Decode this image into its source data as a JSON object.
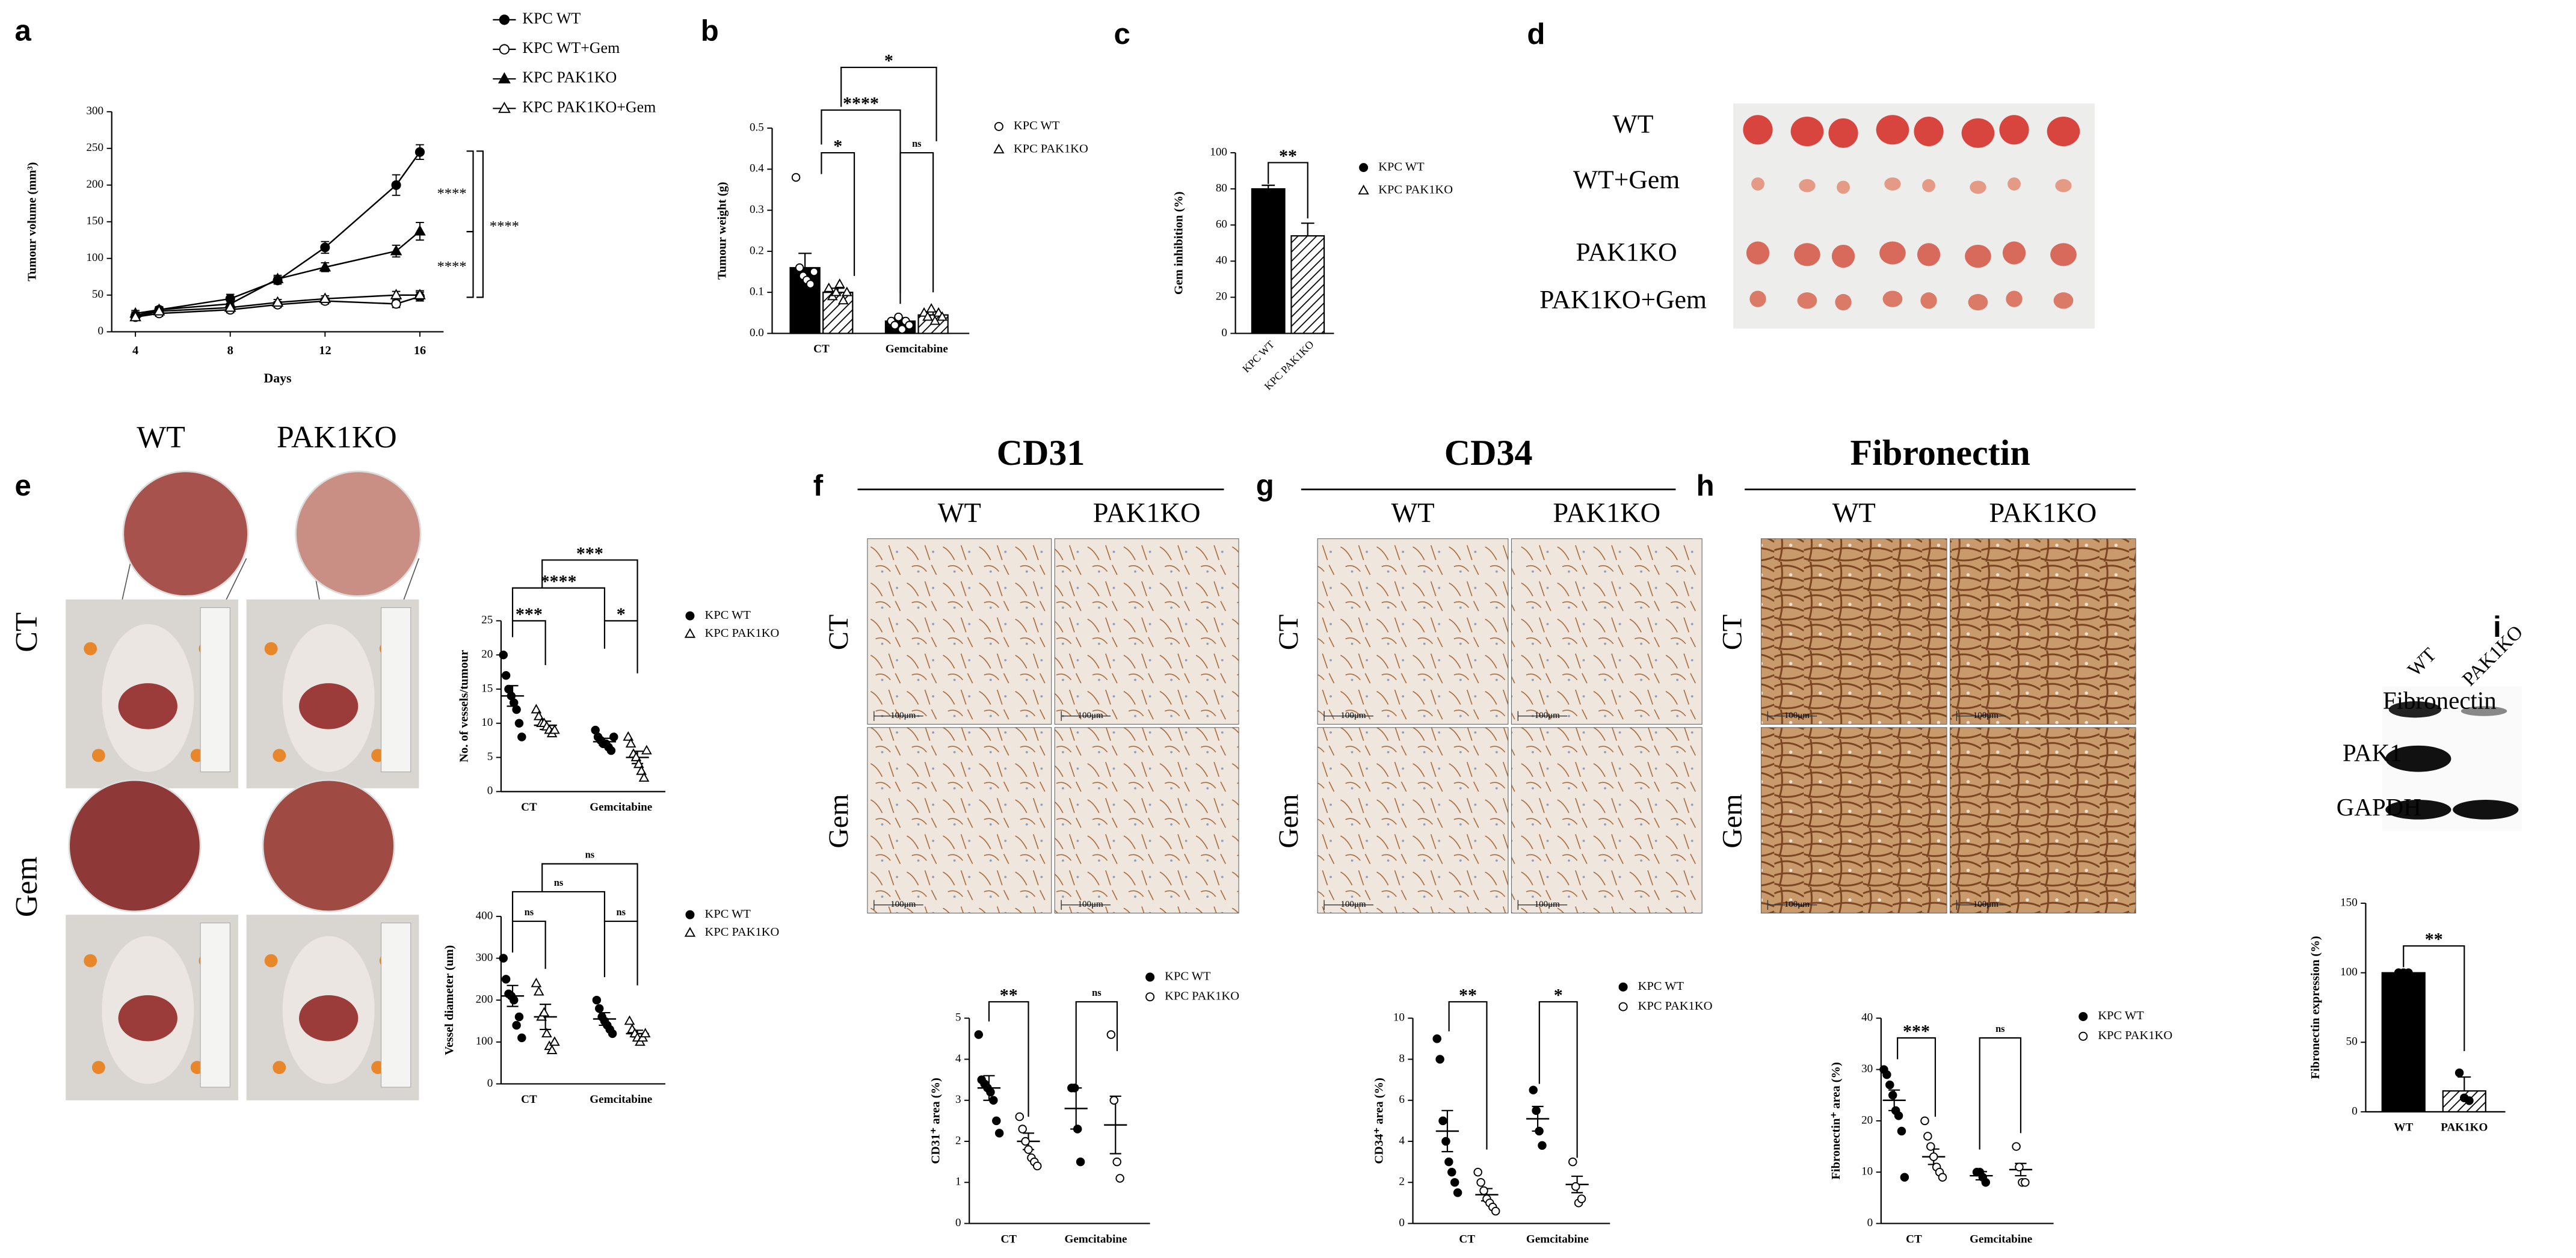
{
  "figure": {
    "panel_d": "d",
    "d_labels": [
      "WT",
      "WT+Gem",
      "PAK1KO",
      "PAK1KO+Gem"
    ],
    "e_columns": [
      "WT",
      "PAK1KO"
    ],
    "e_rows": [
      "CT",
      "Gem"
    ],
    "ihc": [
      {
        "panel": "f",
        "title": "CD31"
      },
      {
        "panel": "g",
        "title": "CD34"
      },
      {
        "panel": "h",
        "title": "Fibronectin"
      }
    ],
    "ihc_columns": [
      "WT",
      "PAK1KO"
    ],
    "ihc_rows": [
      "CT",
      "Gem"
    ],
    "scale_bar": "100μm",
    "blot_lanes": [
      "WT",
      "PAK1KO"
    ],
    "blot_proteins": [
      "Fibronectin",
      "PAK1",
      "GAPDH"
    ]
  },
  "chart_data": [
    {
      "panel": "a",
      "type": "line",
      "x_label": "Days",
      "y_label": "Tumour volume (mm³)",
      "x": [
        4,
        5,
        8,
        10,
        12,
        15,
        16
      ],
      "xlim": [
        3,
        17
      ],
      "xticks": [
        4,
        8,
        12,
        16
      ],
      "ylim": [
        0,
        300
      ],
      "yticks": [
        0,
        50,
        100,
        150,
        200,
        250,
        300
      ],
      "series": [
        {
          "name": "KPC WT",
          "marker": "filled-circle",
          "color": "#000000",
          "values": [
            22,
            30,
            45,
            70,
            115,
            200,
            245
          ],
          "errors": [
            5,
            4,
            6,
            5,
            8,
            14,
            10
          ]
        },
        {
          "name": "KPC WT+Gem",
          "marker": "open-circle",
          "color": "#000000",
          "values": [
            20,
            25,
            30,
            37,
            42,
            38,
            48
          ],
          "errors": [
            4,
            4,
            4,
            4,
            4,
            5,
            6
          ]
        },
        {
          "name": "KPC PAK1KO",
          "marker": "filled-triangle",
          "color": "#000000",
          "values": [
            25,
            30,
            38,
            72,
            88,
            110,
            137
          ],
          "errors": [
            4,
            4,
            5,
            5,
            6,
            8,
            12
          ]
        },
        {
          "name": "KPC PAK1KO+Gem",
          "marker": "open-triangle",
          "color": "#000000",
          "values": [
            20,
            28,
            33,
            40,
            45,
            50,
            50
          ],
          "errors": [
            3,
            4,
            4,
            4,
            4,
            5,
            6
          ]
        }
      ],
      "annotations": [
        "****",
        "****",
        "****"
      ]
    },
    {
      "panel": "b",
      "type": "bar",
      "y_label": "Tumour weight (g)",
      "categories": [
        "CT",
        "Gemcitabine"
      ],
      "ylim": [
        0,
        0.5
      ],
      "yticks": [
        {
          "value": 0,
          "label": "0.0"
        },
        0.1,
        0.2,
        0.3,
        0.4,
        0.5
      ],
      "series": [
        {
          "name": "KPC WT",
          "marker": "open-circle",
          "fill": "solid",
          "color": "#000000",
          "values": [
            0.16,
            0.03
          ],
          "errors": [
            0.035,
            0.008
          ],
          "points": [
            [
              0.38,
              0.16,
              0.14,
              0.13,
              0.12,
              0.15
            ],
            [
              0.03,
              0.02,
              0.04,
              0.01,
              0.03,
              0.02
            ]
          ]
        },
        {
          "name": "KPC PAK1KO",
          "marker": "open-triangle",
          "fill": "hatched",
          "color": "#000000",
          "values": [
            0.1,
            0.045
          ],
          "errors": [
            0.01,
            0.008
          ],
          "points": [
            [
              0.11,
              0.09,
              0.1,
              0.12,
              0.08,
              0.1
            ],
            [
              0.05,
              0.04,
              0.06,
              0.03,
              0.05,
              0.04
            ]
          ]
        }
      ],
      "annotations": [
        "*",
        "****",
        "*",
        "ns"
      ]
    },
    {
      "panel": "c",
      "type": "bar",
      "y_label": "Gem inhibition (%)",
      "categories": [
        "KPC WT",
        "KPC PAK1KO"
      ],
      "values": [
        80,
        54
      ],
      "errors": [
        2,
        7
      ],
      "fills": [
        "solid",
        "hatched"
      ],
      "markers": [
        "filled-circle",
        "open-triangle"
      ],
      "color": "#000000",
      "ylim": [
        0,
        100
      ],
      "yticks": [
        0,
        20,
        40,
        60,
        80,
        100
      ],
      "annotations": [
        "**"
      ]
    },
    {
      "panel": "e",
      "type": "dot",
      "y_label": "No. of vessels/tumour",
      "categories": [
        "CT",
        "Gemcitabine"
      ],
      "ylim": [
        0,
        25
      ],
      "yticks": [
        0,
        5,
        10,
        15,
        20,
        25
      ],
      "series": [
        {
          "name": "KPC WT",
          "marker": "filled-circle",
          "color": "#000000",
          "values": [
            14,
            7.3
          ],
          "errors": [
            1.5,
            0.5
          ],
          "points": [
            [
              20,
              17,
              15,
              14,
              13,
              12,
              10,
              8
            ],
            [
              9,
              8,
              7.5,
              7,
              7,
              6.5,
              6,
              8
            ]
          ]
        },
        {
          "name": "KPC PAK1KO",
          "marker": "open-triangle",
          "color": "#000000",
          "values": [
            9.7,
            5
          ],
          "errors": [
            0.6,
            0.9
          ],
          "points": [
            [
              12,
              11,
              10,
              10,
              9.5,
              9,
              8.5,
              9
            ],
            [
              8,
              7,
              5.5,
              5,
              4,
              3,
              2,
              6
            ]
          ]
        }
      ],
      "annotations": [
        "***",
        "****",
        "***",
        "*"
      ]
    },
    {
      "type": "dot",
      "y_label": "Vessel diameter (um)",
      "categories": [
        "CT",
        "Gemcitabine"
      ],
      "ylim": [
        0,
        400
      ],
      "yticks": [
        0,
        100,
        200,
        300,
        400
      ],
      "series": [
        {
          "name": "KPC WT",
          "marker": "filled-circle",
          "color": "#000000",
          "values": [
            210,
            155
          ],
          "errors": [
            25,
            15
          ],
          "points": [
            [
              300,
              250,
              215,
              210,
              200,
              140,
              160,
              110
            ],
            [
              200,
              180,
              160,
              150,
              140,
              130,
              120
            ]
          ]
        },
        {
          "name": "KPC PAK1KO",
          "marker": "open-triangle",
          "color": "#000000",
          "values": [
            160,
            120
          ],
          "errors": [
            30,
            8
          ],
          "points": [
            [
              240,
              220,
              160,
              170,
              120,
              90,
              80,
              100
            ],
            [
              150,
              130,
              120,
              110,
              100,
              110,
              120
            ]
          ]
        }
      ],
      "annotations": [
        "ns",
        "ns",
        "ns",
        "ns"
      ]
    },
    {
      "type": "dot",
      "y_label": "CD31⁺ area (%)",
      "categories": [
        "CT",
        "Gemcitabine"
      ],
      "ylim": [
        0,
        5
      ],
      "yticks": [
        0,
        1,
        2,
        3,
        4,
        5
      ],
      "series": [
        {
          "name": "KPC WT",
          "marker": "filled-circle",
          "color": "#000000",
          "values": [
            3.3,
            2.8
          ],
          "errors": [
            0.3,
            0.5
          ],
          "points": [
            [
              4.6,
              3.5,
              3.4,
              3.3,
              3.2,
              3.0,
              2.5,
              2.2
            ],
            [
              3.3,
              3.3,
              2.3,
              1.5
            ]
          ]
        },
        {
          "name": "KPC PAK1KO",
          "marker": "open-circle",
          "color": "#000000",
          "values": [
            2.0,
            2.4
          ],
          "errors": [
            0.2,
            0.7
          ],
          "points": [
            [
              2.6,
              2.3,
              2.0,
              1.8,
              1.6,
              1.5,
              1.4
            ],
            [
              4.6,
              3.0,
              1.5,
              1.1
            ]
          ]
        }
      ],
      "annotations": [
        "**",
        "ns"
      ]
    },
    {
      "type": "dot",
      "y_label": "CD34⁺ area (%)",
      "categories": [
        "CT",
        "Gemcitabine"
      ],
      "ylim": [
        0,
        10
      ],
      "yticks": [
        0,
        2,
        4,
        6,
        8,
        10
      ],
      "series": [
        {
          "name": "KPC WT",
          "marker": "filled-circle",
          "color": "#000000",
          "values": [
            4.5,
            5.1
          ],
          "errors": [
            1,
            0.6
          ],
          "points": [
            [
              9,
              8,
              5,
              4,
              3,
              2.5,
              2,
              1.5
            ],
            [
              6.5,
              5.5,
              4.5,
              3.8
            ]
          ]
        },
        {
          "name": "KPC PAK1KO",
          "marker": "open-circle",
          "color": "#000000",
          "values": [
            1.4,
            1.9
          ],
          "errors": [
            0.3,
            0.4
          ],
          "points": [
            [
              2.5,
              2,
              1.6,
              1.2,
              1,
              0.8,
              0.6
            ],
            [
              3,
              1.8,
              1,
              1.2
            ]
          ]
        }
      ],
      "annotations": [
        "**",
        "*"
      ]
    },
    {
      "type": "dot",
      "y_label": "Fibronectin⁺ area (%)",
      "categories": [
        "CT",
        "Gemcitabine"
      ],
      "ylim": [
        0,
        40
      ],
      "yticks": [
        0,
        10,
        20,
        30,
        40
      ],
      "series": [
        {
          "name": "KPC WT",
          "marker": "filled-circle",
          "color": "#000000",
          "values": [
            24,
            9.3
          ],
          "errors": [
            2,
            0.8
          ],
          "points": [
            [
              30,
              29,
              27,
              25,
              22,
              21,
              18,
              9
            ],
            [
              10,
              10,
              9,
              8
            ]
          ]
        },
        {
          "name": "KPC PAK1KO",
          "marker": "open-circle",
          "color": "#000000",
          "values": [
            13,
            10.5
          ],
          "errors": [
            1.5,
            1.2
          ],
          "points": [
            [
              20,
              17,
              15,
              13,
              11,
              10,
              9
            ],
            [
              15,
              11,
              8,
              8
            ]
          ]
        }
      ],
      "annotations": [
        "***",
        "ns"
      ]
    },
    {
      "panel": "i",
      "type": "bar",
      "y_label": "Fibronectin expression (%)",
      "categories": [
        "WT",
        "PAK1KO"
      ],
      "values": [
        100,
        15
      ],
      "errors": [
        0,
        10
      ],
      "fills": [
        "solid",
        "hatched"
      ],
      "markers": [
        "filled-circle",
        "filled-circle"
      ],
      "color": "#000000",
      "points": [
        [
          100,
          100,
          100
        ],
        [
          28,
          10,
          8
        ]
      ],
      "ylim": [
        0,
        150
      ],
      "yticks": [
        0,
        50,
        100,
        150
      ],
      "annotations": [
        "**"
      ]
    }
  ]
}
